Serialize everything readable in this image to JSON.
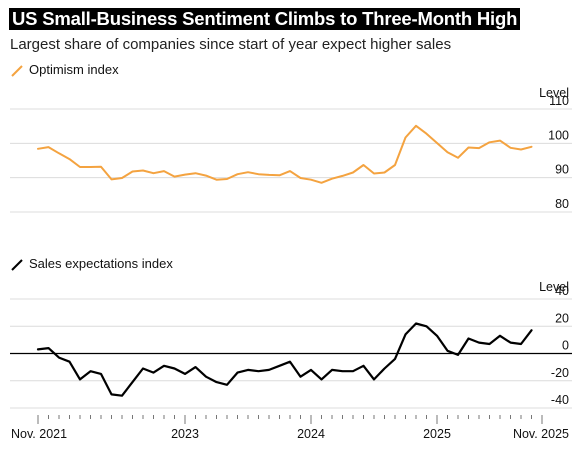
{
  "title": "US Small-Business Sentiment Climbs to Three-Month High",
  "subtitle": "Largest share of companies since start of year expect higher sales",
  "colors": {
    "optimism": "#f4a340",
    "sales": "#000000",
    "grid": "#dcdcdc"
  },
  "chart_data": [
    {
      "type": "line",
      "legend": "Optimism index",
      "axis_unit_label": "Level",
      "ylim": [
        80,
        110
      ],
      "yticks": [
        80,
        90,
        100,
        110
      ],
      "x_tick_labels": [
        "Nov. 2021",
        "2023",
        "2024",
        "2025",
        "Nov. 2025"
      ],
      "x_range": [
        "2021-11",
        "2025-11"
      ],
      "series": [
        {
          "values": [
            98.4,
            98.9,
            97.1,
            95.4,
            93.1,
            93.1,
            93.2,
            89.5,
            89.9,
            91.8,
            92.1,
            91.3,
            91.9,
            90.3,
            90.9,
            91.3,
            90.6,
            89.4,
            89.6,
            91.0,
            91.6,
            91.0,
            90.8,
            90.7,
            91.9,
            89.9,
            89.4,
            88.5,
            89.7,
            90.5,
            91.5,
            93.7,
            91.2,
            91.5,
            93.7,
            101.7,
            105.1,
            102.8,
            100.1,
            97.4,
            95.8,
            98.8,
            98.6,
            100.3,
            100.8,
            98.7,
            98.2,
            99.0
          ]
        }
      ]
    },
    {
      "type": "line",
      "legend": "Sales expectations index",
      "axis_unit_label": "Level",
      "ylim": [
        -40,
        40
      ],
      "yticks": [
        -40,
        -20,
        0,
        20,
        40
      ],
      "x_tick_labels": [
        "Nov. 2021",
        "2023",
        "2024",
        "2025",
        "Nov. 2025"
      ],
      "x_range": [
        "2021-11",
        "2025-11"
      ],
      "series": [
        {
          "values": [
            3,
            4,
            -3,
            -6,
            -19,
            -13,
            -15,
            -30,
            -31,
            -21,
            -11,
            -14,
            -9,
            -11,
            -15,
            -10,
            -17,
            -21,
            -23,
            -14,
            -12,
            -13,
            -12,
            -9,
            -6,
            -17,
            -12,
            -19,
            -12,
            -13,
            -13,
            -9,
            -19,
            -11,
            -4,
            14,
            22,
            20,
            13,
            2,
            -1,
            11,
            8,
            7,
            13,
            8,
            7,
            17
          ]
        }
      ]
    }
  ]
}
